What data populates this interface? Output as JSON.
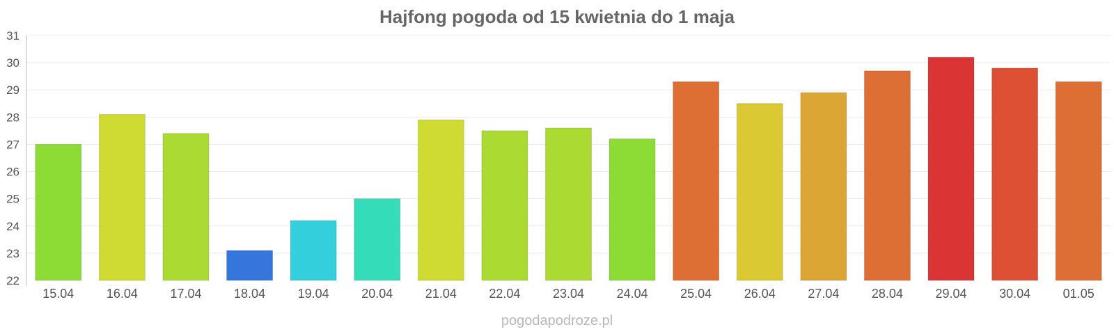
{
  "chart_data": {
    "type": "bar",
    "title": "Hajfong pogoda od 15 kwietnia do 1 maja",
    "xlabel": "",
    "ylabel": "",
    "ylim": [
      22,
      31
    ],
    "yticks": [
      22,
      23,
      24,
      25,
      26,
      27,
      28,
      29,
      30,
      31
    ],
    "grid": true,
    "categories": [
      "15.04",
      "16.04",
      "17.04",
      "18.04",
      "19.04",
      "20.04",
      "21.04",
      "22.04",
      "23.04",
      "24.04",
      "25.04",
      "26.04",
      "27.04",
      "28.04",
      "29.04",
      "30.04",
      "01.05"
    ],
    "values": [
      27.0,
      28.1,
      27.4,
      23.1,
      24.2,
      25.0,
      27.9,
      27.5,
      27.6,
      27.2,
      29.3,
      28.5,
      28.9,
      29.7,
      30.2,
      29.8,
      29.3
    ],
    "colors": [
      "#8ddb35",
      "#cfdb33",
      "#abdb33",
      "#3476dc",
      "#34cfdc",
      "#34dcb9",
      "#cfdb33",
      "#abdb33",
      "#abdb33",
      "#8ddb35",
      "#dd6e34",
      "#dbc933",
      "#dca634",
      "#dd6e34",
      "#db3434",
      "#dd5034",
      "#dd6e34"
    ]
  },
  "watermark": "pogodapodroze.pl"
}
